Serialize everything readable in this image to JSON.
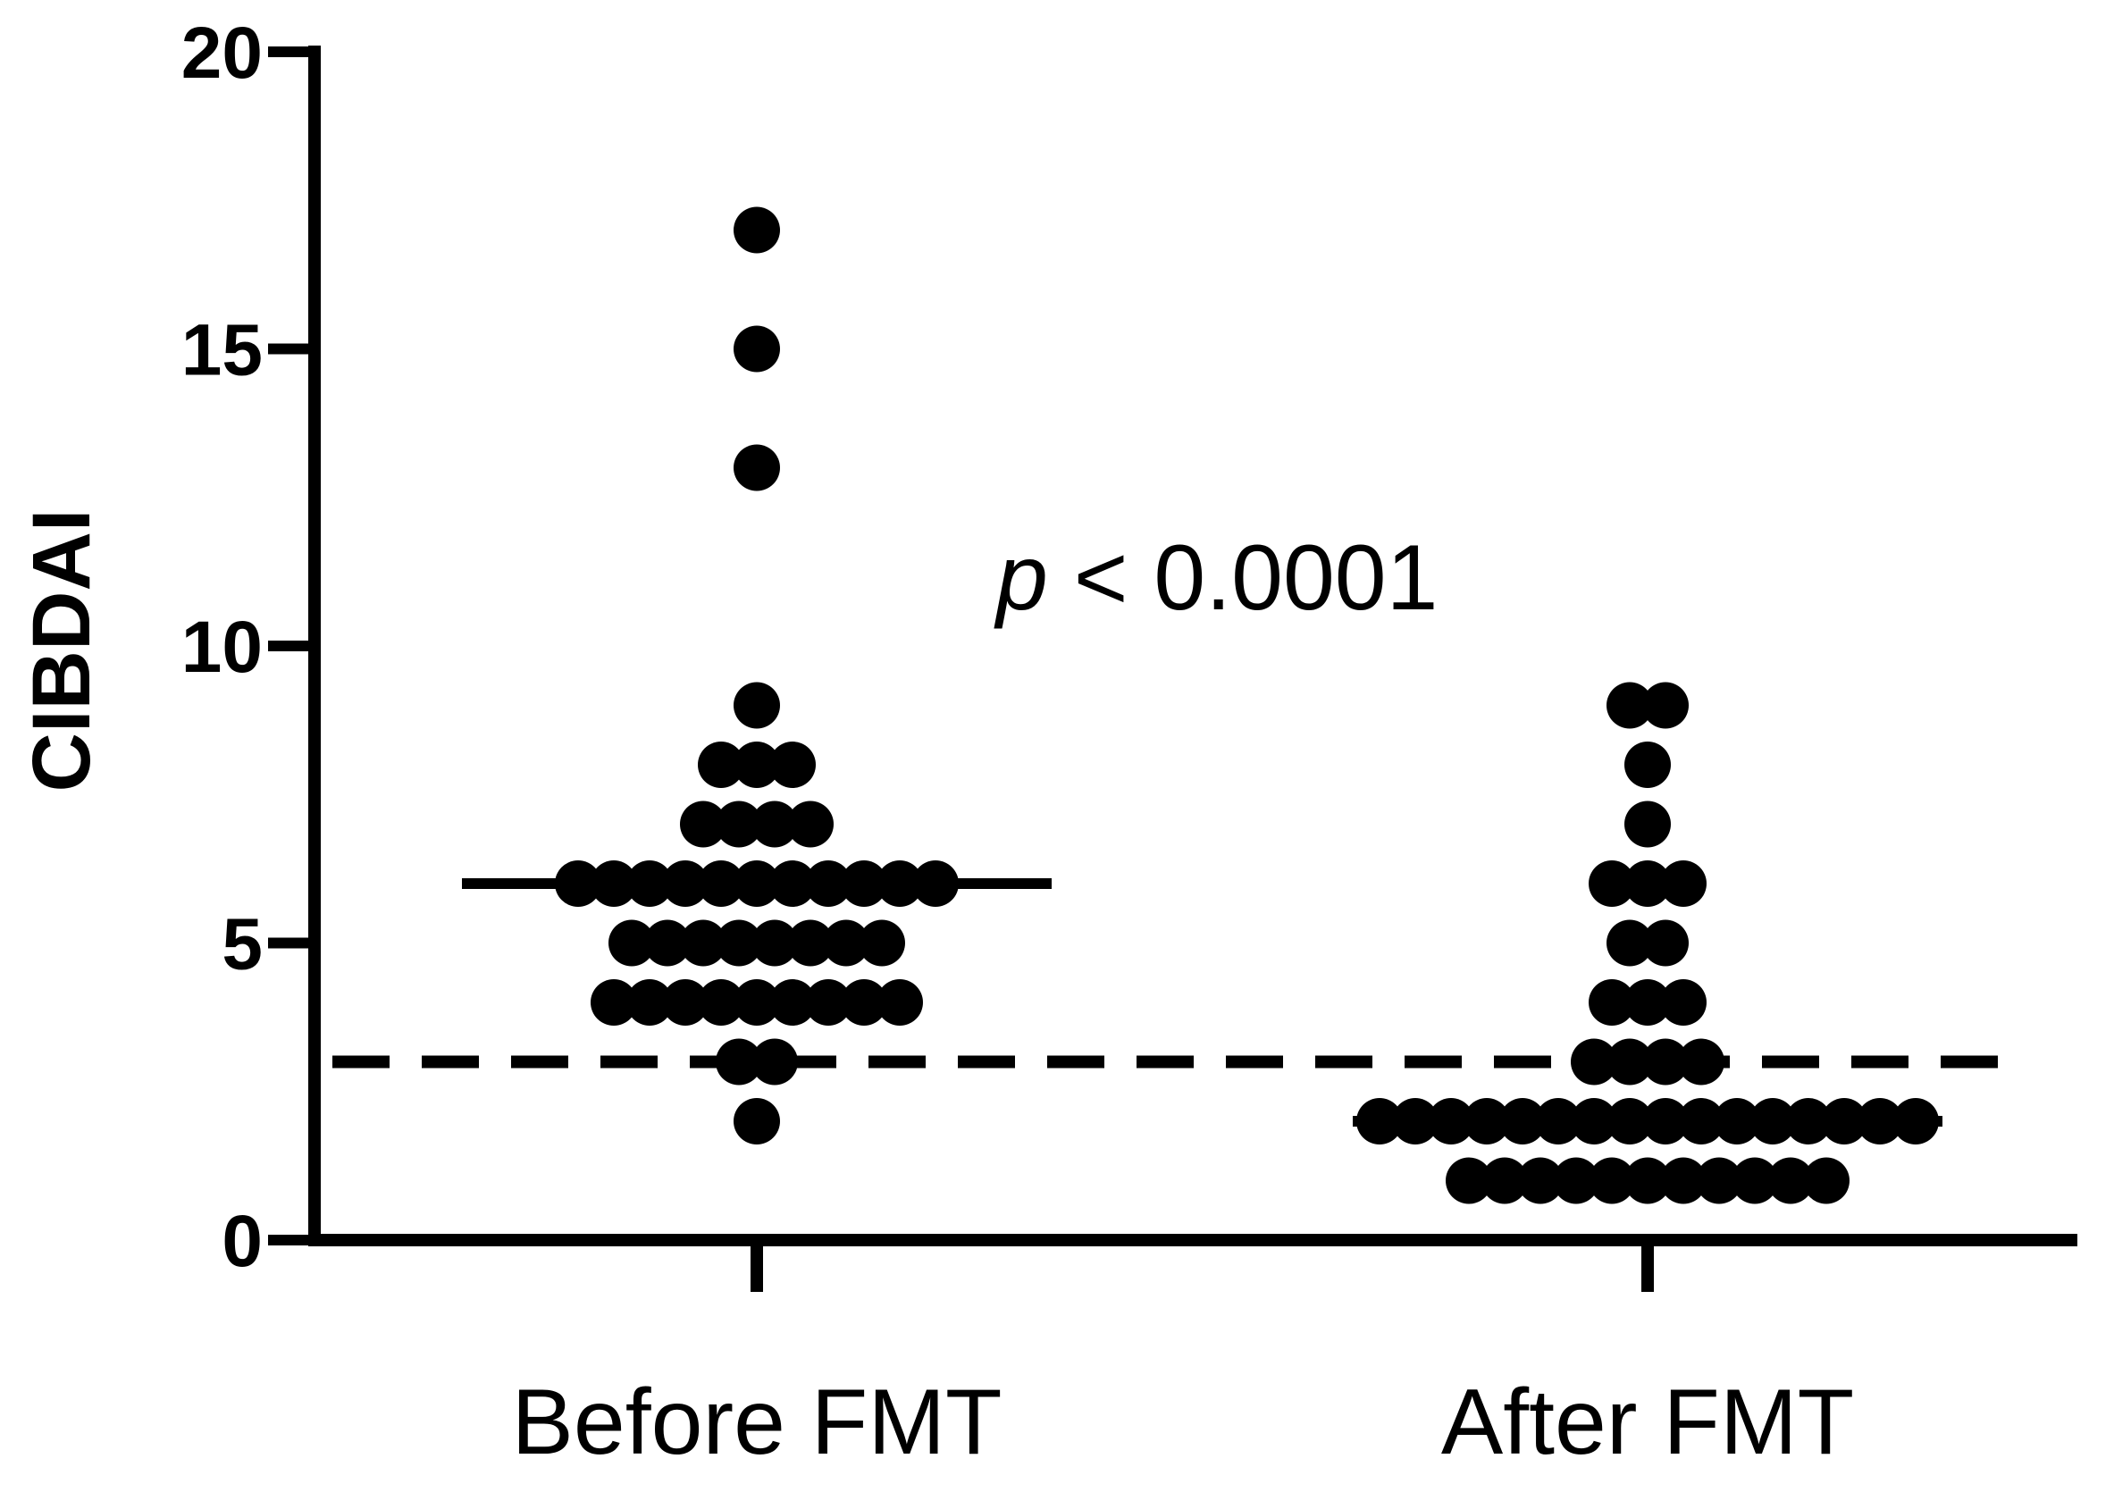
{
  "chart_data": {
    "type": "scatter",
    "ylabel": "CIBDAI",
    "ylim": [
      0,
      20
    ],
    "yticks": [
      0,
      5,
      10,
      15,
      20
    ],
    "categories": [
      "Before FMT",
      "After FMT"
    ],
    "threshold_line": {
      "value": 3,
      "style": "dashed"
    },
    "annotation": {
      "symbol": "p",
      "text": " < 0.0001"
    },
    "marker_color": "#000000",
    "groups": [
      {
        "category": "Before FMT",
        "median": 6,
        "values": [
          17,
          15,
          13,
          9,
          8,
          8,
          8,
          7,
          7,
          7,
          7,
          6,
          6,
          6,
          6,
          6,
          6,
          6,
          6,
          6,
          6,
          6,
          5,
          5,
          5,
          5,
          5,
          5,
          5,
          5,
          4,
          4,
          4,
          4,
          4,
          4,
          4,
          4,
          4,
          3,
          3,
          2
        ]
      },
      {
        "category": "After FMT",
        "median": 2,
        "values": [
          9,
          9,
          8,
          7,
          6,
          6,
          6,
          5,
          5,
          4,
          4,
          4,
          3,
          3,
          3,
          3,
          2,
          2,
          2,
          2,
          2,
          2,
          2,
          2,
          2,
          2,
          2,
          2,
          2,
          2,
          2,
          2,
          1,
          1,
          1,
          1,
          1,
          1,
          1,
          1,
          1,
          1,
          1
        ]
      }
    ]
  }
}
